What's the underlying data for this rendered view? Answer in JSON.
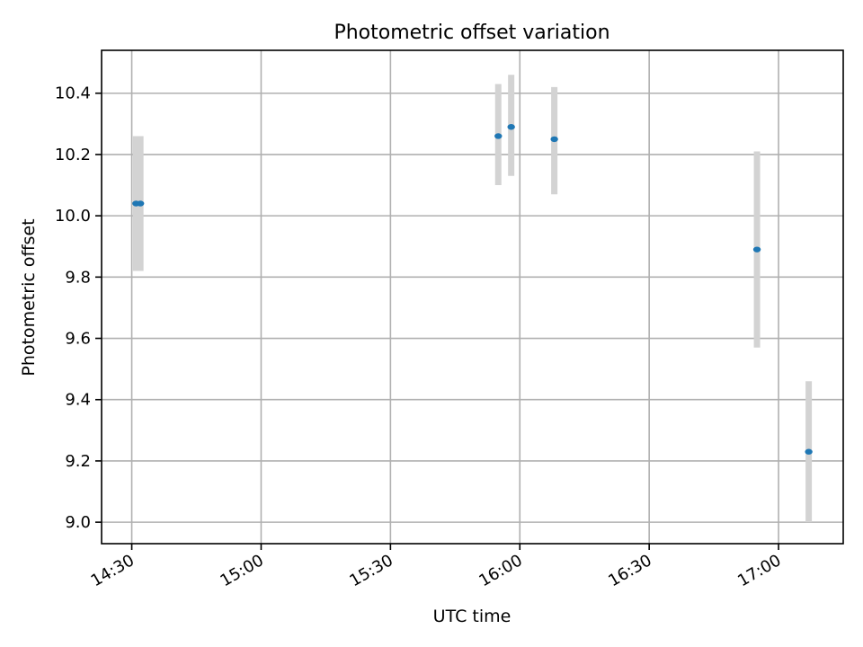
{
  "chart_data": {
    "type": "scatter",
    "title": "Photometric offset variation",
    "xlabel": "UTC time",
    "ylabel": "Photometric offset",
    "x_tick_labels": [
      "14:30",
      "15:00",
      "15:30",
      "16:00",
      "16:30",
      "17:00"
    ],
    "y_tick_labels": [
      "9.0",
      "9.2",
      "9.4",
      "9.6",
      "9.8",
      "10.0",
      "10.2",
      "10.4"
    ],
    "xlim": [
      "14:23",
      "17:15"
    ],
    "ylim": [
      8.93,
      10.54
    ],
    "grid": true,
    "points": [
      {
        "x": "14:31",
        "y": 10.04,
        "yerr": [
          9.82,
          10.26
        ]
      },
      {
        "x": "14:32",
        "y": 10.04,
        "yerr": [
          9.82,
          10.26
        ]
      },
      {
        "x": "15:55",
        "y": 10.26,
        "yerr": [
          10.1,
          10.43
        ]
      },
      {
        "x": "15:58",
        "y": 10.29,
        "yerr": [
          10.13,
          10.46
        ]
      },
      {
        "x": "16:08",
        "y": 10.25,
        "yerr": [
          10.07,
          10.42
        ]
      },
      {
        "x": "16:55",
        "y": 9.89,
        "yerr": [
          9.57,
          10.21
        ]
      },
      {
        "x": "17:07",
        "y": 9.23,
        "yerr": [
          9.0,
          9.46
        ]
      }
    ],
    "colors": {
      "point": "#1f77b4",
      "errorbar": "#d3d3d3"
    }
  }
}
